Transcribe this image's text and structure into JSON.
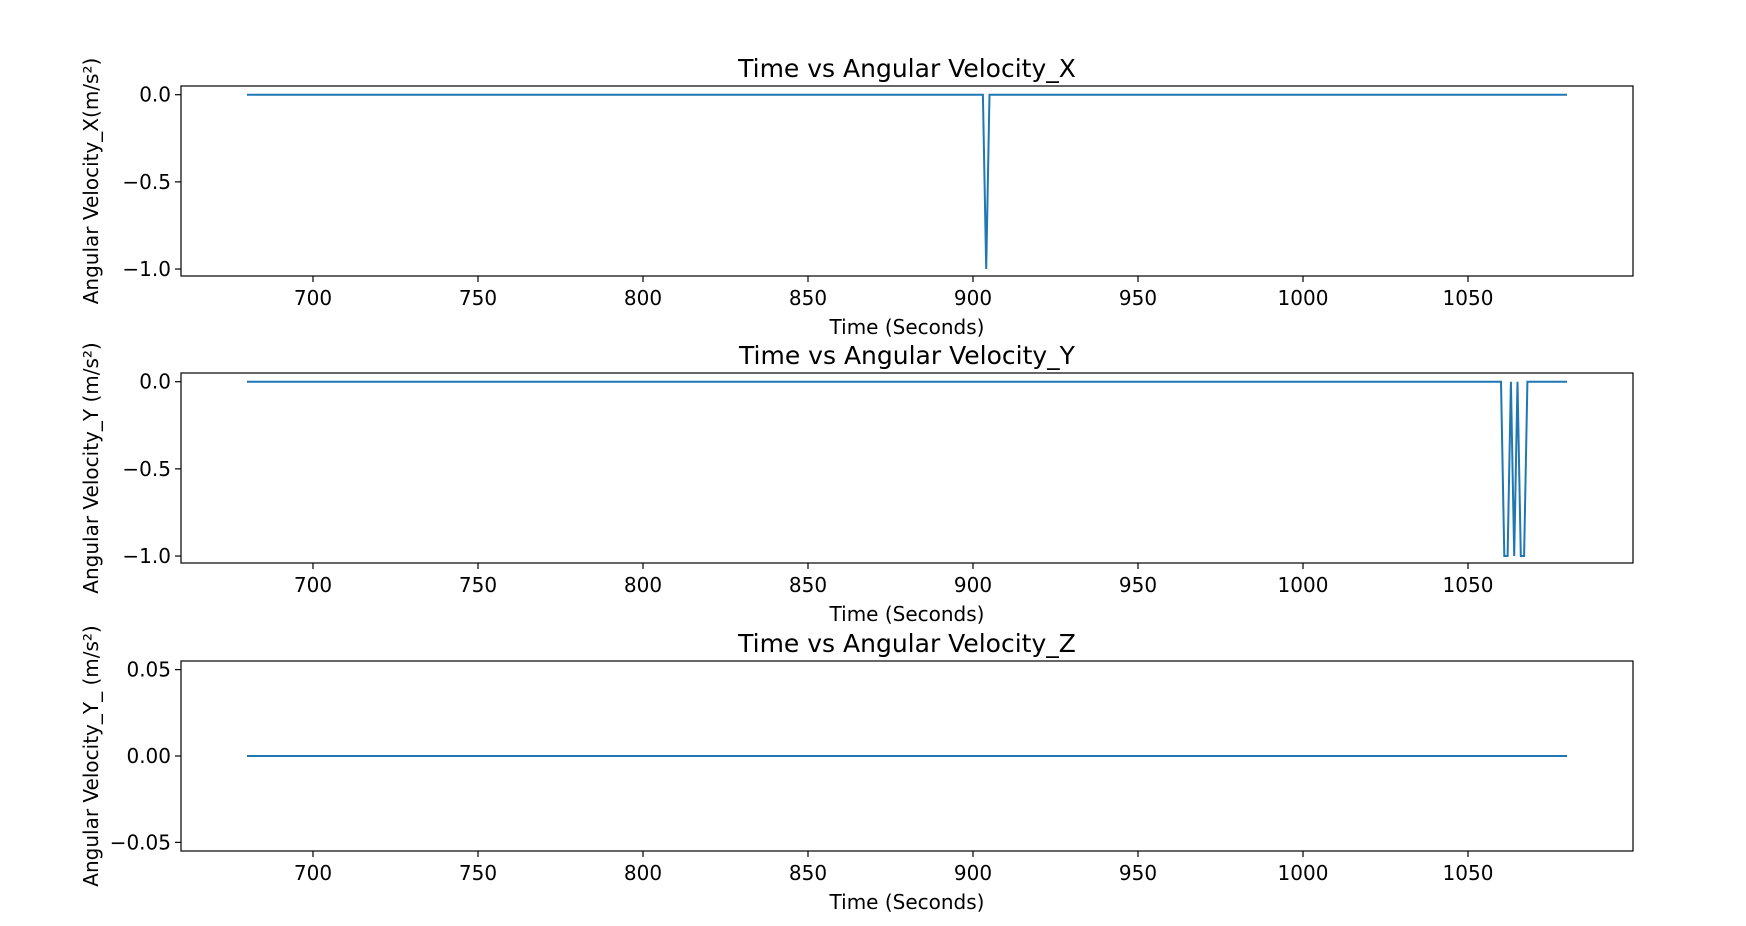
{
  "chart_data": [
    {
      "type": "line",
      "title": "Time vs Angular Velocity_X",
      "xlabel": "Time (Seconds)",
      "ylabel": "Angular Velocity_X(m/s²)",
      "xlim": [
        660,
        1100
      ],
      "ylim": [
        -1.04,
        0.05
      ],
      "xticks": [
        700,
        750,
        800,
        850,
        900,
        950,
        1000,
        1050
      ],
      "xtick_labels": [
        "700",
        "750",
        "800",
        "850",
        "900",
        "950",
        "1000",
        "1050"
      ],
      "yticks": [
        0.0,
        -0.5,
        -1.0
      ],
      "ytick_labels": [
        "0.0",
        "−0.5",
        "−1.0"
      ],
      "grid": false,
      "color": "#1f77b4",
      "series": [
        {
          "x": [
            680,
            903,
            904,
            905,
            1080
          ],
          "y": [
            0,
            0,
            -1,
            0,
            0
          ]
        }
      ]
    },
    {
      "type": "line",
      "title": "Time vs Angular Velocity_Y",
      "xlabel": "Time (Seconds)",
      "ylabel": "Angular Velocity_Y (m/s²)",
      "xlim": [
        660,
        1100
      ],
      "ylim": [
        -1.04,
        0.05
      ],
      "xticks": [
        700,
        750,
        800,
        850,
        900,
        950,
        1000,
        1050
      ],
      "xtick_labels": [
        "700",
        "750",
        "800",
        "850",
        "900",
        "950",
        "1000",
        "1050"
      ],
      "yticks": [
        0.0,
        -0.5,
        -1.0
      ],
      "ytick_labels": [
        "0.0",
        "−0.5",
        "−1.0"
      ],
      "grid": false,
      "color": "#1f77b4",
      "series": [
        {
          "x": [
            680,
            1060,
            1061,
            1062,
            1063,
            1064,
            1065,
            1066,
            1067,
            1068,
            1069,
            1080
          ],
          "y": [
            0,
            0,
            -1,
            -1,
            0,
            -1,
            0,
            -1,
            -1,
            0,
            0,
            0
          ]
        }
      ]
    },
    {
      "type": "line",
      "title": "Time vs Angular Velocity_Z",
      "xlabel": "Time (Seconds)",
      "ylabel": "Angular Velocity_Y_ (m/s²)",
      "xlim": [
        660,
        1100
      ],
      "ylim": [
        -0.055,
        0.055
      ],
      "xticks": [
        700,
        750,
        800,
        850,
        900,
        950,
        1000,
        1050
      ],
      "xtick_labels": [
        "700",
        "750",
        "800",
        "850",
        "900",
        "950",
        "1000",
        "1050"
      ],
      "yticks": [
        0.05,
        0.0,
        -0.05
      ],
      "ytick_labels": [
        "0.05",
        "0.00",
        "−0.05"
      ],
      "grid": false,
      "color": "#1f77b4",
      "series": [
        {
          "x": [
            680,
            1080
          ],
          "y": [
            0,
            0
          ]
        }
      ]
    }
  ]
}
